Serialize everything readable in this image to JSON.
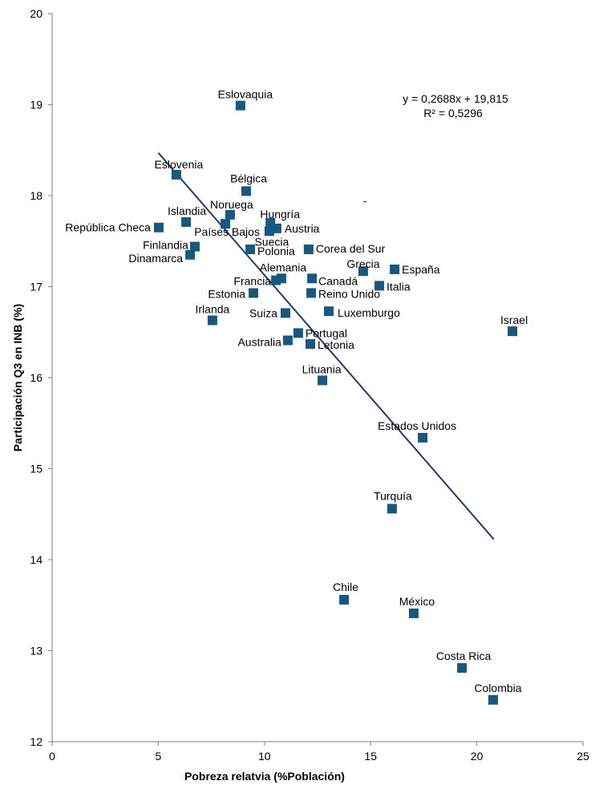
{
  "chart_data": {
    "type": "scatter",
    "title": "",
    "xlabel": "Pobreza relatvia (%Población)",
    "ylabel": "Participación Q3 en INB (%)",
    "xlim": [
      0,
      25
    ],
    "ylim": [
      12,
      20
    ],
    "xticks": [
      "0",
      "5",
      "10",
      "15",
      "20",
      "25"
    ],
    "yticks": [
      "12",
      "13",
      "14",
      "15",
      "16",
      "17",
      "18",
      "19",
      "20"
    ],
    "grid": false,
    "marker_color": "#17587f",
    "trend_color": "#1f3b70",
    "equation": "y = 0,2688x + 19,815",
    "r2": "R² = 0,5296",
    "stray_mark": "-",
    "trendline": {
      "slope": -0.2688,
      "intercept": 19.815,
      "x_range": [
        5.0,
        20.8
      ]
    },
    "points": [
      {
        "label": "Eslovaquia",
        "x": 8.87,
        "y": 18.99
      },
      {
        "label": "Eslovenia",
        "x": 5.85,
        "y": 18.23
      },
      {
        "label": "Bélgica",
        "x": 9.14,
        "y": 18.05
      },
      {
        "label": "República Checa",
        "x": 5.02,
        "y": 17.65
      },
      {
        "label": "Islandia",
        "x": 6.31,
        "y": 17.71
      },
      {
        "label": "Noruega",
        "x": 8.38,
        "y": 17.79
      },
      {
        "label": "Países Bajos",
        "x": 8.16,
        "y": 17.69
      },
      {
        "label": "Hungría",
        "x": 10.28,
        "y": 17.7
      },
      {
        "label": "Austria",
        "x": 10.57,
        "y": 17.64
      },
      {
        "label": "Finlandia",
        "x": 6.72,
        "y": 17.44
      },
      {
        "label": "Dinamarca",
        "x": 6.5,
        "y": 17.35
      },
      {
        "label": "Suecia",
        "x": 10.23,
        "y": 17.61
      },
      {
        "label": "Polonia",
        "x": 9.33,
        "y": 17.41
      },
      {
        "label": "Corea del Sur",
        "x": 12.08,
        "y": 17.41
      },
      {
        "label": "Grecia",
        "x": 14.65,
        "y": 17.17
      },
      {
        "label": "España",
        "x": 16.13,
        "y": 17.19
      },
      {
        "label": "Alemania",
        "x": 10.8,
        "y": 17.09
      },
      {
        "label": "Francia",
        "x": 10.54,
        "y": 17.07
      },
      {
        "label": "Canadá",
        "x": 12.24,
        "y": 17.09
      },
      {
        "label": "Italia",
        "x": 15.41,
        "y": 17.01
      },
      {
        "label": "Estonia",
        "x": 9.48,
        "y": 16.93
      },
      {
        "label": "Reino Unido",
        "x": 12.2,
        "y": 16.93
      },
      {
        "label": "Suiza",
        "x": 10.99,
        "y": 16.71
      },
      {
        "label": "Luxemburgo",
        "x": 13.03,
        "y": 16.73
      },
      {
        "label": "Irlanda",
        "x": 7.55,
        "y": 16.63
      },
      {
        "label": "Portugal",
        "x": 11.59,
        "y": 16.49
      },
      {
        "label": "Australia",
        "x": 11.1,
        "y": 16.41
      },
      {
        "label": "Letonia",
        "x": 12.16,
        "y": 16.37
      },
      {
        "label": "Israel",
        "x": 21.68,
        "y": 16.51
      },
      {
        "label": "Lituania",
        "x": 12.73,
        "y": 15.97
      },
      {
        "label": "Estados Unidos",
        "x": 17.45,
        "y": 15.34
      },
      {
        "label": "Turquía",
        "x": 16.01,
        "y": 14.56
      },
      {
        "label": "Chile",
        "x": 13.75,
        "y": 13.56
      },
      {
        "label": "México",
        "x": 17.03,
        "y": 13.41
      },
      {
        "label": "Costa Rica",
        "x": 19.3,
        "y": 12.81
      },
      {
        "label": "Colombia",
        "x": 20.77,
        "y": 12.46
      }
    ]
  }
}
